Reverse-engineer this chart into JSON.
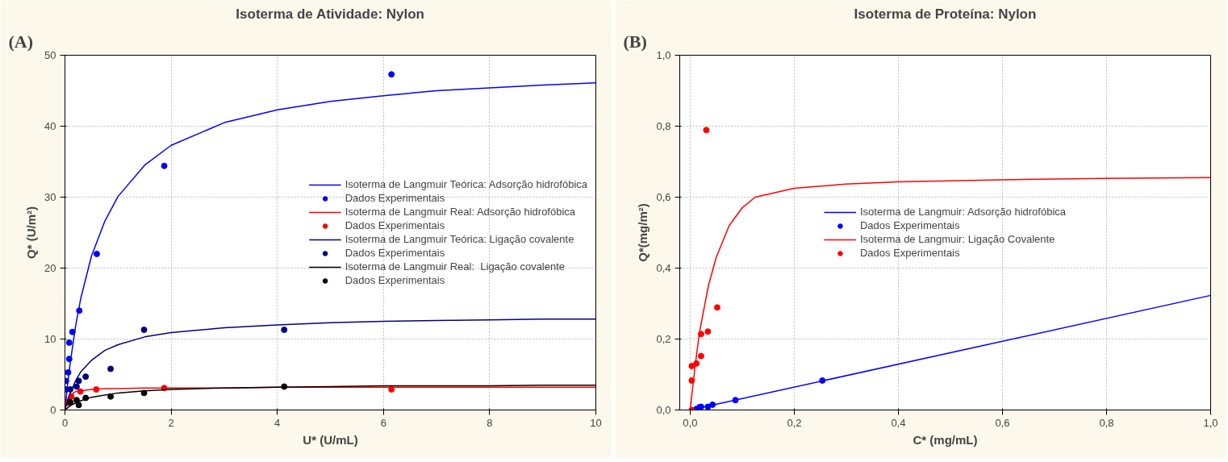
{
  "chart_data": [
    {
      "type": "line",
      "title": "Isoterma de Atividade: Nylon",
      "xlabel": "U* (U/mL)",
      "ylabel": "Q* (U/m²)",
      "annotations": [
        "(A)"
      ],
      "xlim": [
        0,
        10
      ],
      "ylim": [
        0,
        50
      ],
      "xticks": [
        0,
        2,
        4,
        6,
        8,
        10
      ],
      "yticks": [
        0,
        10,
        20,
        30,
        40,
        50
      ],
      "grid": true,
      "legend": "right",
      "series": [
        {
          "name": "Isoterma de Langmuir Teórica: Adsorção hidrofóbica",
          "type": "line",
          "color": "#0000ff",
          "x": [
            0,
            0.05,
            0.1,
            0.2,
            0.3,
            0.5,
            0.75,
            1,
            1.5,
            2,
            3,
            4,
            5,
            6,
            7,
            8,
            9,
            10
          ],
          "values": [
            0,
            3.6,
            6.7,
            11.8,
            15.8,
            21.7,
            26.6,
            30.1,
            34.5,
            37.3,
            40.5,
            42.3,
            43.5,
            44.3,
            45.0,
            45.4,
            45.8,
            46.1
          ]
        },
        {
          "name": "Dados Experimentais",
          "type": "scatter",
          "color": "#0000ff",
          "x": [
            6.15,
            1.87,
            0.6,
            0.27,
            0.14,
            0.08,
            0.08,
            0.06,
            0.02,
            0.02
          ],
          "values": [
            47.3,
            34.4,
            22.0,
            14.0,
            11.0,
            9.5,
            7.2,
            5.3,
            4.1,
            2.9
          ]
        },
        {
          "name": "Isoterma de Langmuir Real: Adsorção hidrofóbica",
          "type": "line",
          "color": "#ff0000",
          "x": [
            0,
            0.05,
            0.1,
            0.2,
            0.3,
            0.5,
            0.75,
            1,
            1.5,
            2,
            3,
            4,
            5,
            6,
            7,
            8,
            9,
            10
          ],
          "values": [
            0,
            1.6,
            2.1,
            2.6,
            2.7,
            2.9,
            3.0,
            3.0,
            3.1,
            3.1,
            3.1,
            3.2,
            3.2,
            3.2,
            3.2,
            3.2,
            3.2,
            3.2
          ]
        },
        {
          "name": "Dados Experimentais",
          "type": "scatter",
          "color": "#ff0000",
          "x": [
            6.15,
            1.87,
            0.59,
            0.29,
            0.12,
            0.06
          ],
          "values": [
            2.9,
            3.1,
            2.9,
            2.6,
            1.9,
            1.0
          ]
        },
        {
          "name": "Isoterma de Langmuir Teórica: Ligação covalente",
          "type": "line",
          "color": "#000080",
          "x": [
            0,
            0.05,
            0.1,
            0.2,
            0.3,
            0.5,
            0.75,
            1,
            1.5,
            2,
            3,
            4,
            5,
            6,
            7,
            8,
            9,
            10
          ],
          "values": [
            0,
            1.3,
            2.4,
            4.1,
            5.4,
            7.0,
            8.4,
            9.2,
            10.3,
            10.9,
            11.6,
            12.0,
            12.3,
            12.5,
            12.6,
            12.7,
            12.8,
            12.8
          ]
        },
        {
          "name": "Dados Experimentais",
          "type": "scatter",
          "color": "#000080",
          "x": [
            4.13,
            1.49,
            0.86,
            0.39,
            0.26,
            0.22,
            0.1
          ],
          "values": [
            11.3,
            11.3,
            5.8,
            4.7,
            4.1,
            3.3,
            2.9
          ]
        },
        {
          "name": "Isoterma de Langmuir Real:  Ligação covalente",
          "type": "line",
          "color": "#000000",
          "x": [
            0,
            0.05,
            0.1,
            0.2,
            0.3,
            0.5,
            0.75,
            1,
            1.5,
            2,
            3,
            4,
            5,
            6,
            7,
            8,
            9,
            10
          ],
          "values": [
            0,
            0.3,
            0.6,
            1.0,
            1.3,
            1.8,
            2.1,
            2.4,
            2.7,
            2.9,
            3.1,
            3.2,
            3.3,
            3.4,
            3.4,
            3.4,
            3.5,
            3.5
          ]
        },
        {
          "name": "Dados Experimentais",
          "type": "scatter",
          "color": "#000000",
          "x": [
            4.13,
            1.49,
            0.86,
            0.39,
            0.26,
            0.22,
            0.1
          ],
          "values": [
            3.3,
            2.4,
            1.9,
            1.7,
            0.7,
            1.4,
            1.1
          ]
        }
      ]
    },
    {
      "type": "line",
      "title": "Isoterma de Proteína: Nylon",
      "xlabel": "C* (mg/mL)",
      "ylabel": "Q*(mg/m²)",
      "annotations": [
        "(B)"
      ],
      "xlim": [
        -0.02,
        1.0
      ],
      "ylim": [
        0,
        1.0
      ],
      "xticks": [
        {
          "value": 0,
          "label": "0,0"
        },
        {
          "value": 0.2,
          "label": "0,2"
        },
        {
          "value": 0.4,
          "label": "0,4"
        },
        {
          "value": 0.6,
          "label": "0,6"
        },
        {
          "value": 0.8,
          "label": "0,8"
        },
        {
          "value": 1.0,
          "label": "1,0"
        }
      ],
      "yticks": [
        {
          "value": 0,
          "label": "0,0"
        },
        {
          "value": 0.2,
          "label": "0,2"
        },
        {
          "value": 0.4,
          "label": "0,4"
        },
        {
          "value": 0.6,
          "label": "0,6"
        },
        {
          "value": 0.8,
          "label": "0,8"
        },
        {
          "value": 1.0,
          "label": "1,0"
        }
      ],
      "grid": true,
      "legend": "center",
      "series": [
        {
          "name": "Isoterma de Langmuir: Adsorção hidrofóbica",
          "type": "line",
          "color": "#0000ff",
          "x": [
            0,
            1.0
          ],
          "values": [
            0,
            0.323
          ]
        },
        {
          "name": "Dados Experimentais",
          "type": "scatter",
          "color": "#0000ff",
          "x": [
            0.254,
            0.087,
            0.043,
            0.034,
            0.021,
            0.018,
            0.012
          ],
          "values": [
            0.083,
            0.028,
            0.015,
            0.009,
            0.009,
            0.008,
            0.003
          ]
        },
        {
          "name": "Isoterma de Langmuir: Ligação Covalente",
          "type": "line",
          "color": "#ff0000",
          "x": [
            0,
            0.01,
            0.018,
            0.035,
            0.05,
            0.075,
            0.1,
            0.125,
            0.2,
            0.3,
            0.4,
            0.6,
            0.8,
            1.0
          ],
          "values": [
            0,
            0.13,
            0.22,
            0.35,
            0.43,
            0.52,
            0.57,
            0.6,
            0.625,
            0.637,
            0.643,
            0.649,
            0.653,
            0.655
          ]
        },
        {
          "name": "Dados Experimentais",
          "type": "scatter",
          "color": "#ff0000",
          "x": [
            0.031,
            0.052,
            0.034,
            0.021,
            0.021,
            0.012,
            0.003,
            0.003,
            0.003
          ],
          "values": [
            0.789,
            0.289,
            0.221,
            0.214,
            0.152,
            0.131,
            0.124,
            0.083,
            0.0
          ]
        }
      ]
    }
  ]
}
